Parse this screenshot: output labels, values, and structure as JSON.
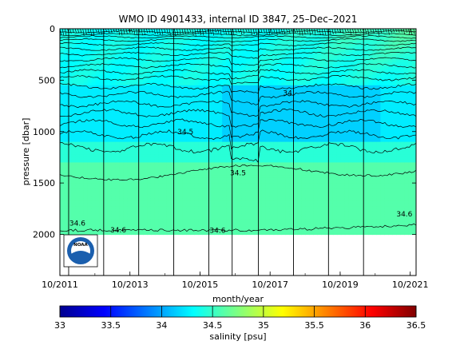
{
  "chart_data": [
    {
      "type": "heatmap",
      "title": "WMO ID 4901433, internal ID 3847, 25–Dec–2021",
      "xlabel": "month/year",
      "ylabel": "pressure [dbar]",
      "x_tick_labels": [
        "10/2011",
        "10/2013",
        "10/2015",
        "10/2017",
        "10/2019",
        "10/2021"
      ],
      "x_ticks": [
        "2011-10",
        "2013-10",
        "2015-10",
        "2017-10",
        "2019-10",
        "2021-10"
      ],
      "xlim": [
        "2011-10",
        "2021-12"
      ],
      "y_ticks": [
        0,
        500,
        1000,
        1500,
        2000
      ],
      "ylim": [
        0,
        2400
      ],
      "y_reversed": true,
      "vertical_lines_x": [
        "2012-01",
        "2013-01",
        "2014-01",
        "2015-01",
        "2016-01",
        "2016-09",
        "2017-06",
        "2018-06",
        "2019-06",
        "2020-06"
      ],
      "profile_max_pressure": 2000,
      "layers": [
        {
          "top": 0,
          "bottom": 550,
          "salinity": 34.35
        },
        {
          "top": 550,
          "bottom": 1100,
          "salinity": 34.25
        },
        {
          "top": 1100,
          "bottom": 1300,
          "salinity": 34.45
        },
        {
          "top": 1300,
          "bottom": 2000,
          "salinity": 34.6
        }
      ],
      "contour_labels": [
        {
          "text": "34",
          "x": "2018-04",
          "y": 650
        },
        {
          "text": "34.5",
          "x": "2015-05",
          "y": 1025
        },
        {
          "text": "34.5",
          "x": "2016-11",
          "y": 1425
        },
        {
          "text": "34.6",
          "x": "2012-04",
          "y": 1915
        },
        {
          "text": "34.6",
          "x": "2013-06",
          "y": 1980
        },
        {
          "text": "34.6",
          "x": "2016-04",
          "y": 1985
        },
        {
          "text": "34.6",
          "x": "2021-08",
          "y": 1825
        }
      ],
      "colorbar": {
        "label": "salinity [psu]",
        "min": 33,
        "max": 36.5,
        "ticks": [
          33,
          33.5,
          34,
          34.5,
          35,
          35.5,
          36,
          36.5
        ],
        "colormap": "jet"
      }
    }
  ],
  "logo": {
    "text": "NOAA",
    "name": "noaa-logo"
  }
}
